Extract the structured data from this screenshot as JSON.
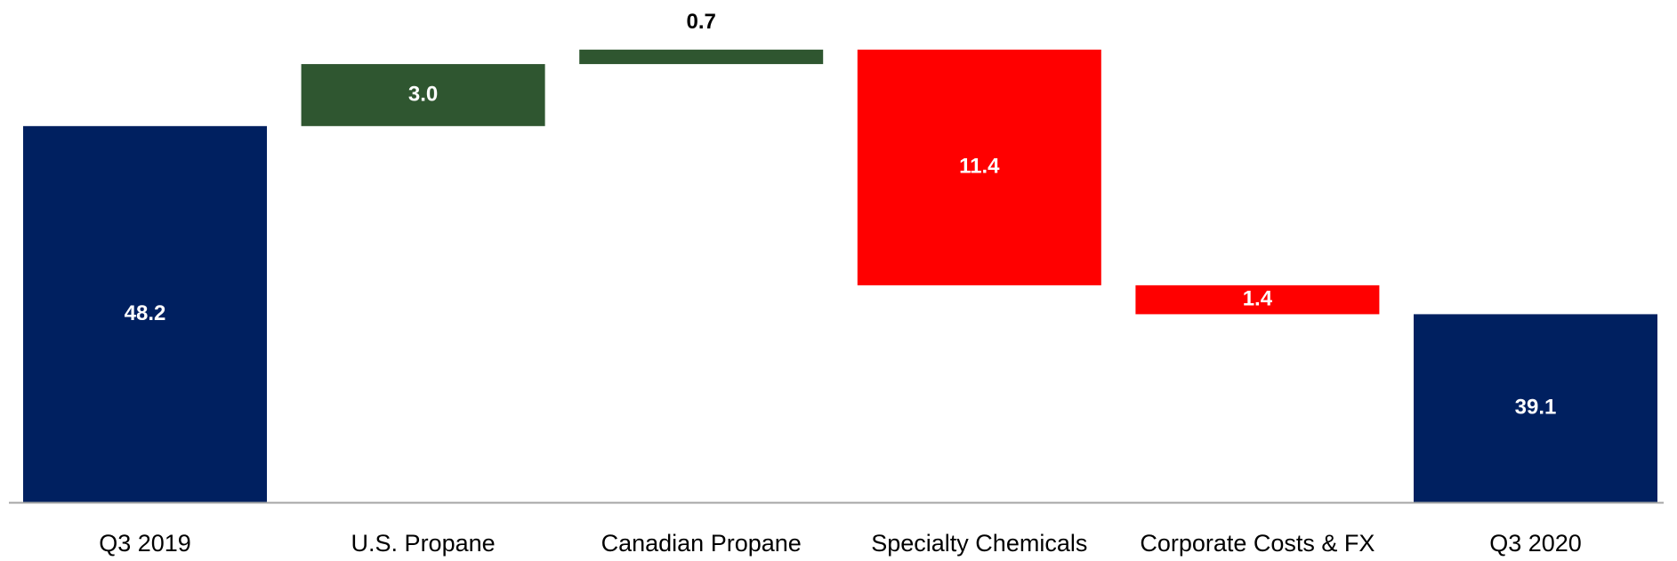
{
  "chart_data": {
    "type": "waterfall",
    "categories": [
      "Q3 2019",
      "U.S. Propane",
      "Canadian Propane",
      "Specialty Chemicals",
      "Corporate Costs & FX",
      "Q3 2020"
    ],
    "values": [
      48.2,
      3.0,
      0.7,
      -11.4,
      -1.4,
      39.1
    ],
    "value_labels": [
      "48.2",
      "3.0",
      "0.7",
      "11.4",
      "1.4",
      "39.1"
    ],
    "colors": [
      "#002060",
      "#2f5630",
      "#2f5630",
      "#ff0000",
      "#ff0000",
      "#002060"
    ],
    "ylim": [
      30,
      54.3
    ]
  }
}
